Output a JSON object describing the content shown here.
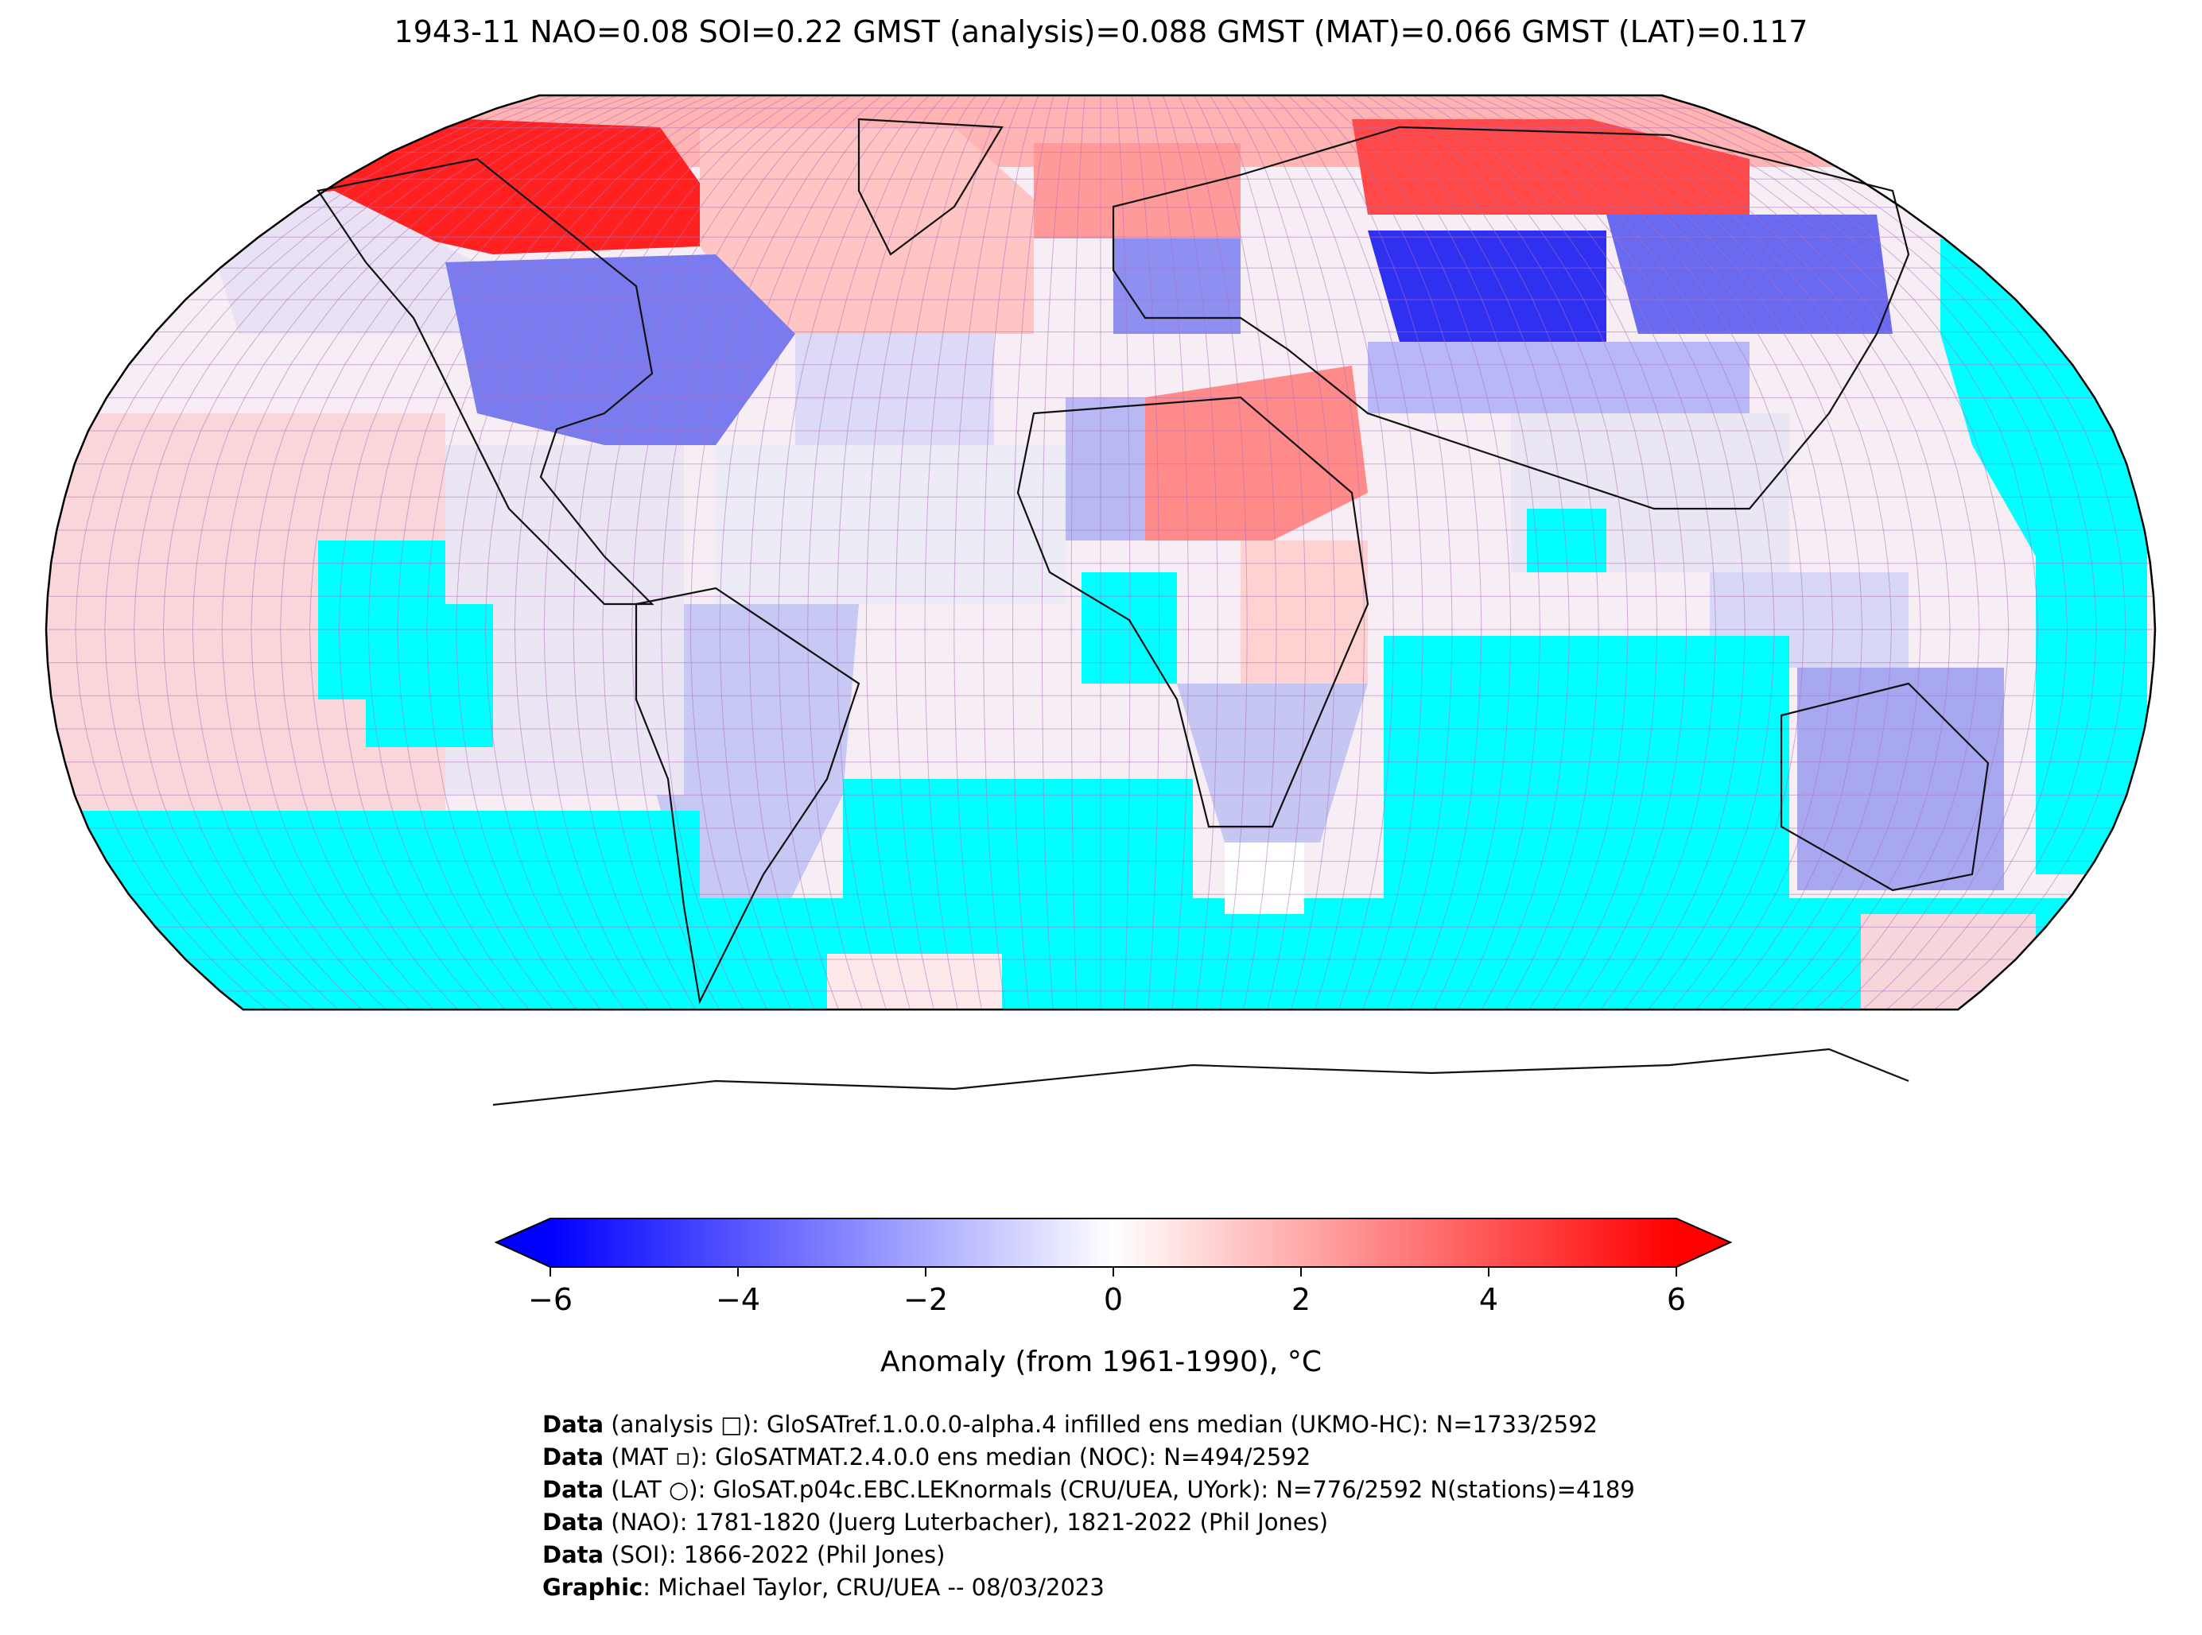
{
  "title": "1943-11 NAO=0.08 SOI=0.22 GMST (analysis)=0.088 GMST (MAT)=0.066 GMST (LAT)=0.117",
  "map": {
    "projection": "Robinson",
    "ocean_fill_color": "#00ffff",
    "land_mask_color": "#808080",
    "grid_color": "#b070c0",
    "regions": [
      {
        "name": "north-america-arctic",
        "anomaly": 5.5
      },
      {
        "name": "greenland-north-atlantic",
        "anomaly": 2.0
      },
      {
        "name": "eastern-north-america",
        "anomaly": -2.5
      },
      {
        "name": "europe",
        "anomaly": -2.0
      },
      {
        "name": "siberia-central-asia",
        "anomaly": -5.0
      },
      {
        "name": "arctic-eurasia",
        "anomaly": 4.5
      },
      {
        "name": "north-africa-middle-east",
        "anomaly": 3.0
      },
      {
        "name": "south-america",
        "anomaly": -1.0
      },
      {
        "name": "southern-africa",
        "anomaly": -1.0
      },
      {
        "name": "australia",
        "anomaly": -1.5
      },
      {
        "name": "pacific-tropics",
        "anomaly": 0.8
      },
      {
        "name": "southern-ocean-no-data",
        "anomaly": null
      }
    ]
  },
  "colorbar": {
    "colormap": [
      "#0000ff",
      "#ffffff",
      "#ff0000"
    ],
    "min": -6,
    "max": 6,
    "ticks": [
      "−6",
      "−4",
      "−2",
      "0",
      "2",
      "4",
      "6"
    ],
    "label": "Anomaly (from 1961-1990), °C"
  },
  "credits": [
    {
      "label": "Data",
      "text": " (analysis □): GloSATref.1.0.0.0-alpha.4 infilled ens median (UKMO-HC): N=1733/2592"
    },
    {
      "label": "Data",
      "text": " (MAT ▫): GloSATMAT.2.4.0.0 ens median (NOC): N=494/2592"
    },
    {
      "label": "Data",
      "text": " (LAT ○): GloSAT.p04c.EBC.LEKnormals (CRU/UEA, UYork): N=776/2592 N(stations)=4189"
    },
    {
      "label": "Data",
      "text": " (NAO): 1781-1820 (Juerg Luterbacher), 1821-2022 (Phil Jones)"
    },
    {
      "label": "Data",
      "text": " (SOI): 1866-2022 (Phil Jones)"
    },
    {
      "label": "Graphic",
      "text": ": Michael Taylor, CRU/UEA -- 08/03/2023"
    }
  ]
}
